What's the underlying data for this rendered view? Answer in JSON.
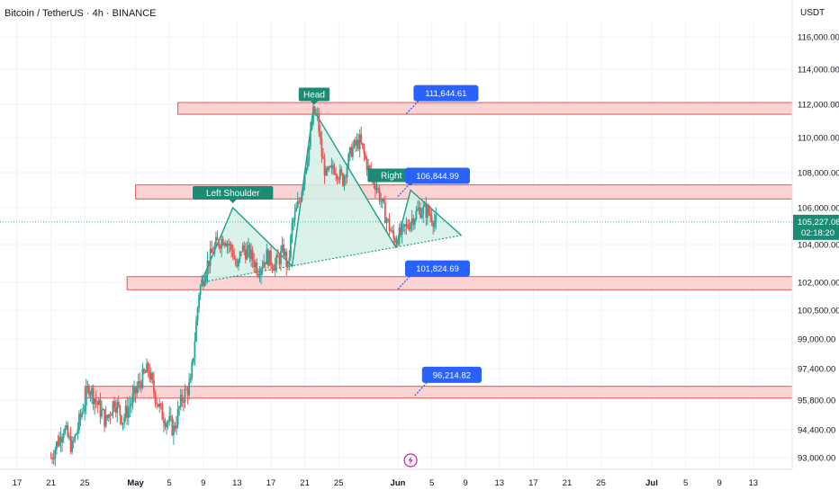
{
  "header": {
    "symbol_title": "Bitcoin / TetherUS · 4h · BINANCE",
    "currency": "USDT"
  },
  "colors": {
    "up": "#26a69a",
    "down": "#ef5350",
    "zone_fill": "#fcd3d3",
    "zone_stroke": "#e05656",
    "pattern_line": "#1a9e86",
    "pattern_fill": "#d3f0e6",
    "callout": "#2962ff",
    "label_bg": "#1b8b74",
    "price_tag": "#1b8b74",
    "axis_text": "#131722",
    "event_icon": "#c41fa3"
  },
  "chart_data": {
    "type": "candlestick",
    "title": "Bitcoin / TetherUS · 4h · BINANCE",
    "timeframe": "4h",
    "exchange": "BINANCE",
    "y_axis": {
      "range": [
        92400,
        117000
      ],
      "ticks": [
        116000,
        114000,
        112000,
        110000,
        108000,
        106000,
        104000,
        102000,
        100500,
        99000,
        97400,
        95800,
        94400,
        93000
      ],
      "tick_labels": [
        "116,000.00",
        "114,000.00",
        "112,000.00",
        "110,000.00",
        "108,000.00",
        "106,000.00",
        "104,000.00",
        "102,000.00",
        "100,500.00",
        "99,000.00",
        "97,400.00",
        "95,800.00",
        "94,400.00",
        "93,000.00"
      ]
    },
    "x_axis": {
      "start_date": "2025-04-17",
      "end_date": "2025-07-15",
      "ticks": [
        {
          "date": "2025-04-17",
          "label": "17"
        },
        {
          "date": "2025-04-21",
          "label": "21"
        },
        {
          "date": "2025-04-25",
          "label": "25"
        },
        {
          "date": "2025-05-01",
          "label": "May"
        },
        {
          "date": "2025-05-05",
          "label": "5"
        },
        {
          "date": "2025-05-09",
          "label": "9"
        },
        {
          "date": "2025-05-13",
          "label": "13"
        },
        {
          "date": "2025-05-17",
          "label": "17"
        },
        {
          "date": "2025-05-21",
          "label": "21"
        },
        {
          "date": "2025-05-25",
          "label": "25"
        },
        {
          "date": "2025-06-01",
          "label": "Jun"
        },
        {
          "date": "2025-06-05",
          "label": "5"
        },
        {
          "date": "2025-06-09",
          "label": "9"
        },
        {
          "date": "2025-06-13",
          "label": "13"
        },
        {
          "date": "2025-06-17",
          "label": "17"
        },
        {
          "date": "2025-06-21",
          "label": "21"
        },
        {
          "date": "2025-06-25",
          "label": "25"
        },
        {
          "date": "2025-07-01",
          "label": "Jul"
        },
        {
          "date": "2025-07-05",
          "label": "5"
        },
        {
          "date": "2025-07-09",
          "label": "9"
        },
        {
          "date": "2025-07-13",
          "label": "13"
        }
      ]
    },
    "price_path": [
      [
        "2025-04-21T00:00",
        93000
      ],
      [
        "2025-04-22T12:00",
        94500
      ],
      [
        "2025-04-23T12:00",
        93500
      ],
      [
        "2025-04-24T12:00",
        95000
      ],
      [
        "2025-04-25T12:00",
        96500
      ],
      [
        "2025-04-26T12:00",
        95600
      ],
      [
        "2025-04-27T12:00",
        94800
      ],
      [
        "2025-04-28T12:00",
        95800
      ],
      [
        "2025-04-29T12:00",
        94900
      ],
      [
        "2025-04-30T12:00",
        95700
      ],
      [
        "2025-05-01T12:00",
        96700
      ],
      [
        "2025-05-02T12:00",
        97400
      ],
      [
        "2025-05-03T00:00",
        96500
      ],
      [
        "2025-05-04T00:00",
        95200
      ],
      [
        "2025-05-05T00:00",
        94700
      ],
      [
        "2025-05-05T12:00",
        94400
      ],
      [
        "2025-05-06T12:00",
        95900
      ],
      [
        "2025-05-07T12:00",
        96600
      ],
      [
        "2025-05-08T00:00",
        99000
      ],
      [
        "2025-05-08T12:00",
        101500
      ],
      [
        "2025-05-09T12:00",
        103000
      ],
      [
        "2025-05-10T12:00",
        104000
      ],
      [
        "2025-05-11T12:00",
        104400
      ],
      [
        "2025-05-12T12:00",
        103600
      ],
      [
        "2025-05-13T00:00",
        102600
      ],
      [
        "2025-05-13T12:00",
        103800
      ],
      [
        "2025-05-14T12:00",
        103500
      ],
      [
        "2025-05-15T12:00",
        102700
      ],
      [
        "2025-05-16T12:00",
        103400
      ],
      [
        "2025-05-17T12:00",
        102900
      ],
      [
        "2025-05-18T12:00",
        103700
      ],
      [
        "2025-05-19T00:00",
        102700
      ],
      [
        "2025-05-19T12:00",
        105000
      ],
      [
        "2025-05-20T12:00",
        106700
      ],
      [
        "2025-05-21T12:00",
        109500
      ],
      [
        "2025-05-22T00:00",
        111500
      ],
      [
        "2025-05-22T12:00",
        111200
      ],
      [
        "2025-05-23T00:00",
        109000
      ],
      [
        "2025-05-23T12:00",
        107800
      ],
      [
        "2025-05-24T12:00",
        108300
      ],
      [
        "2025-05-25T12:00",
        107600
      ],
      [
        "2025-05-26T12:00",
        109300
      ],
      [
        "2025-05-27T12:00",
        109800
      ],
      [
        "2025-05-28T12:00",
        108200
      ],
      [
        "2025-05-29T12:00",
        107200
      ],
      [
        "2025-05-30T12:00",
        105600
      ],
      [
        "2025-05-31T12:00",
        104300
      ],
      [
        "2025-06-01T12:00",
        104600
      ],
      [
        "2025-06-02T12:00",
        105300
      ],
      [
        "2025-06-03T12:00",
        105900
      ],
      [
        "2025-06-04T12:00",
        105800
      ],
      [
        "2025-06-05T12:00",
        105200
      ]
    ],
    "current_price": {
      "value": 105227.08,
      "label": "105,227.08",
      "countdown": "02:18:20"
    },
    "zones": [
      {
        "name": "resistance-zone-top",
        "start_date": "2025-05-06T00:00",
        "from": 111400,
        "to": 112100
      },
      {
        "name": "resistance-zone-mid",
        "start_date": "2025-05-01T00:00",
        "from": 106500,
        "to": 107300
      },
      {
        "name": "support-zone-mid",
        "start_date": "2025-04-30T00:00",
        "from": 101600,
        "to": 102300
      },
      {
        "name": "support-zone-low",
        "start_date": "2025-04-25T00:00",
        "from": 95900,
        "to": 96500
      }
    ],
    "callouts": [
      {
        "text": "111,644.61",
        "value": 111644.61,
        "date": "2025-06-02"
      },
      {
        "text": "106,844.99",
        "value": 106844.99,
        "date": "2025-06-01"
      },
      {
        "text": "101,824.69",
        "value": 101824.69,
        "date": "2025-06-01"
      },
      {
        "text": "96,214.82",
        "value": 96214.82,
        "date": "2025-06-03"
      }
    ],
    "pattern": {
      "name": "head-and-shoulders",
      "left_shoulder": {
        "date": "2025-05-12T12:00",
        "value": 106000,
        "label": "Left Shoulder"
      },
      "head": {
        "date": "2025-05-22T00:00",
        "value": 111700,
        "label": "Head"
      },
      "right_shoulder": {
        "date": "2025-06-02T12:00",
        "value": 107000,
        "label": "Right Shoulder"
      },
      "neckline_start": {
        "date": "2025-05-08T18:00",
        "value": 102000
      },
      "neckline_end": {
        "date": "2025-06-08T12:00",
        "value": 104500
      }
    },
    "events": [
      {
        "date": "2025-06-02T12:00",
        "type": "dividend-or-event-icon"
      }
    ]
  }
}
